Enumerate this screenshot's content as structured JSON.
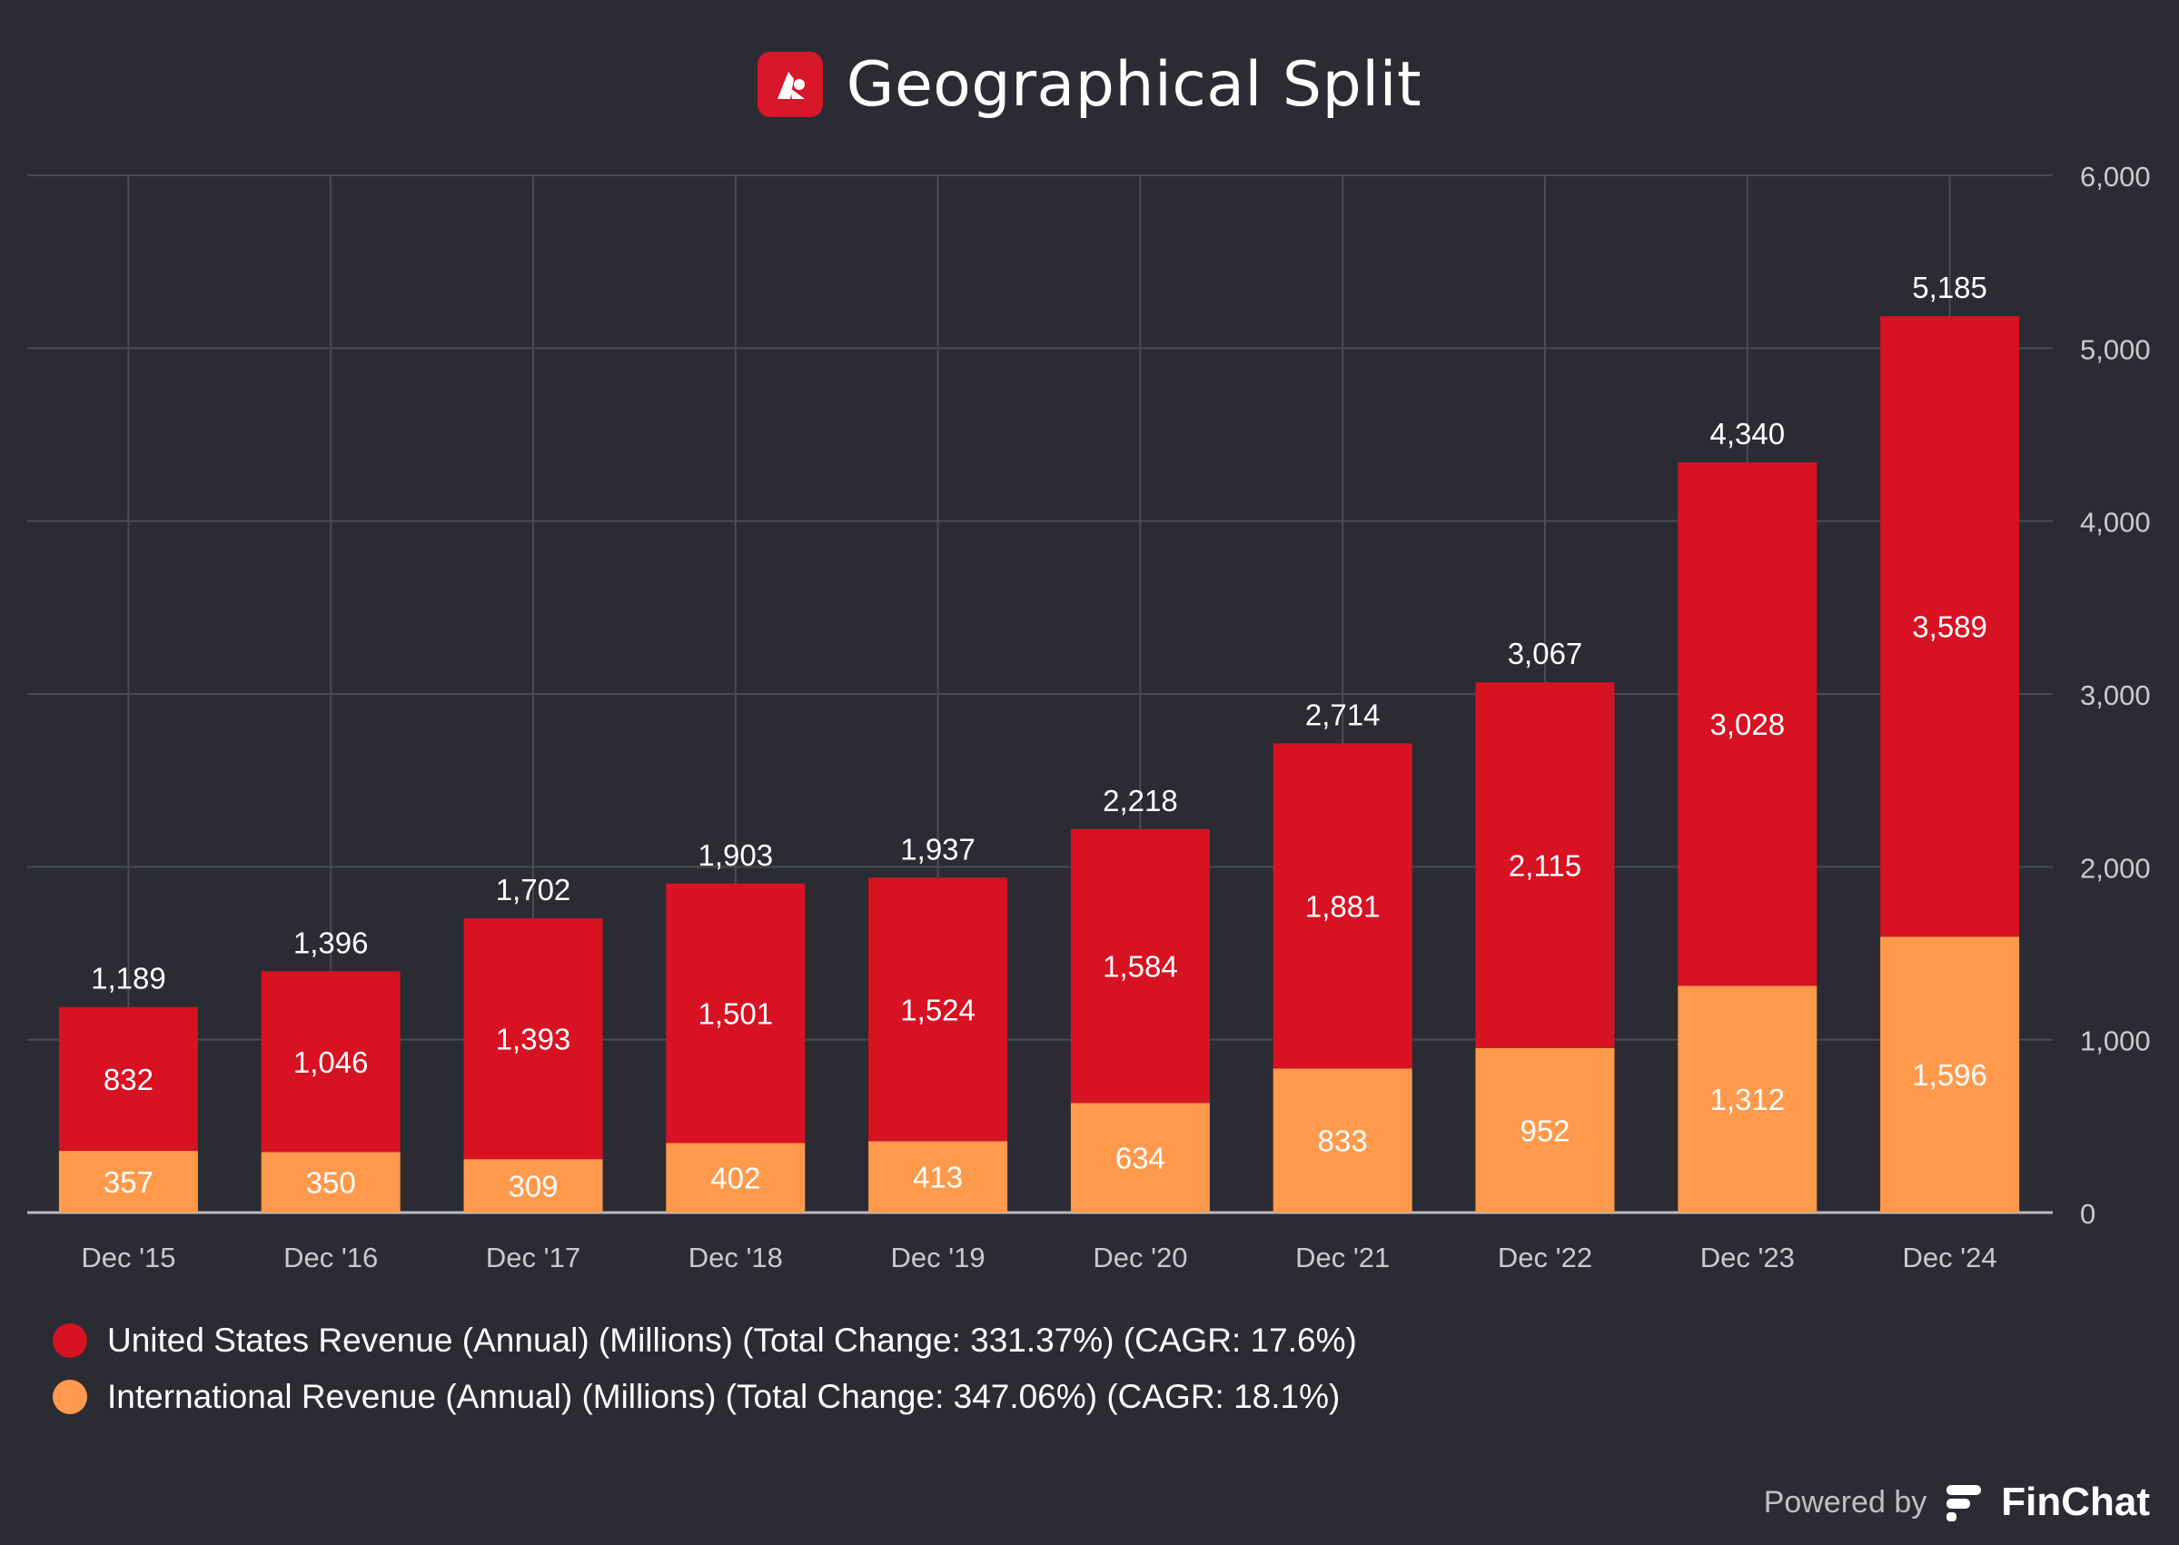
{
  "header": {
    "title": "Geographical Split",
    "logo_icon": "red-app-logo-icon"
  },
  "colors": {
    "background": "#2b2c33",
    "us": "#d61223",
    "international": "#ff9a4d",
    "grid": "#4a4b53",
    "axis_text": "#c9cad0"
  },
  "chart_data": {
    "type": "bar",
    "stacked": true,
    "categories": [
      "Dec '15",
      "Dec '16",
      "Dec '17",
      "Dec '18",
      "Dec '19",
      "Dec '20",
      "Dec '21",
      "Dec '22",
      "Dec '23",
      "Dec '24"
    ],
    "series": [
      {
        "name": "International Revenue (Annual) (Millions) (Total Change: 347.06%) (CAGR: 18.1%)",
        "color": "#ff9a4d",
        "values": [
          357,
          350,
          309,
          402,
          413,
          634,
          833,
          952,
          1312,
          1596
        ],
        "labels": [
          "357",
          "350",
          "309",
          "402",
          "413",
          "634",
          "833",
          "952",
          "1,312",
          "1,596"
        ]
      },
      {
        "name": "United States Revenue (Annual) (Millions) (Total Change: 331.37%) (CAGR: 17.6%)",
        "color": "#d61223",
        "values": [
          832,
          1046,
          1393,
          1501,
          1524,
          1584,
          1881,
          2115,
          3028,
          3589
        ],
        "labels": [
          "832",
          "1,046",
          "1,393",
          "1,501",
          "1,524",
          "1,584",
          "1,881",
          "2,115",
          "3,028",
          "3,589"
        ]
      }
    ],
    "totals": [
      1189,
      1396,
      1702,
      1903,
      1937,
      2218,
      2714,
      3067,
      4340,
      5185
    ],
    "total_labels": [
      "1,189",
      "1,396",
      "1,702",
      "1,903",
      "1,937",
      "2,218",
      "2,714",
      "3,067",
      "4,340",
      "5,185"
    ],
    "ylim": [
      0,
      6000
    ],
    "yticks": [
      0,
      1000,
      2000,
      3000,
      4000,
      5000,
      6000
    ],
    "ytick_labels": [
      "0",
      "1,000",
      "2,000",
      "3,000",
      "4,000",
      "5,000",
      "6,000"
    ],
    "y_axis_side": "right",
    "grid": true,
    "legend_position": "bottom-left",
    "title": "Geographical Split",
    "xlabel": "",
    "ylabel": ""
  },
  "legend": {
    "items": [
      {
        "label": "United States Revenue (Annual) (Millions) (Total Change: 331.37%) (CAGR: 17.6%)",
        "color": "#d61223"
      },
      {
        "label": "International Revenue (Annual) (Millions) (Total Change: 347.06%) (CAGR: 18.1%)",
        "color": "#ff9a4d"
      }
    ]
  },
  "footer": {
    "powered_by": "Powered by",
    "brand": "FinChat",
    "brand_icon": "finchat-logo-icon"
  }
}
